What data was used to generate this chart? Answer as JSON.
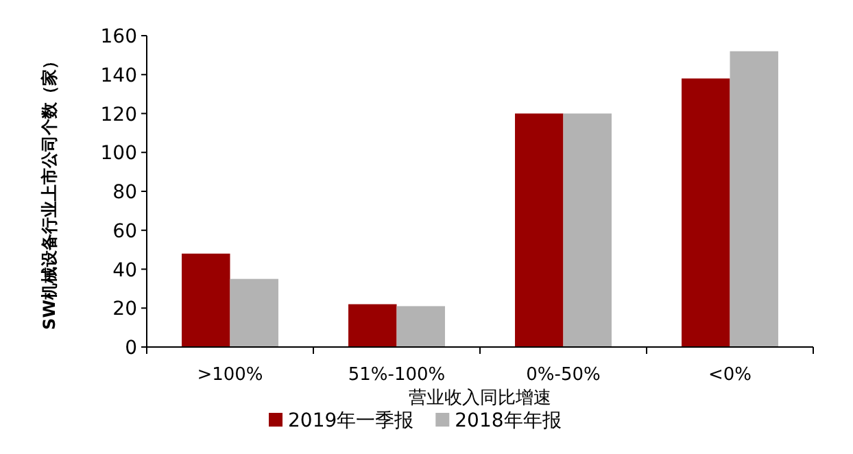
{
  "chart_data": {
    "type": "bar",
    "xlabel": "营业收入同比增速",
    "ylabel": "SW机械设备行业上市公司个数（家）",
    "categories": [
      ">100%",
      "51%-100%",
      "0%-50%",
      "<0%"
    ],
    "series": [
      {
        "name": "2019年一季报",
        "color": "#990000",
        "values": [
          48,
          22,
          120,
          138
        ]
      },
      {
        "name": "2018年年报",
        "color": "#b3b3b3",
        "values": [
          35,
          21,
          120,
          152
        ]
      }
    ],
    "ylim": [
      0,
      160
    ],
    "yticks": [
      0,
      20,
      40,
      60,
      80,
      100,
      120,
      140,
      160
    ],
    "legend": "bottom",
    "grid": false
  }
}
